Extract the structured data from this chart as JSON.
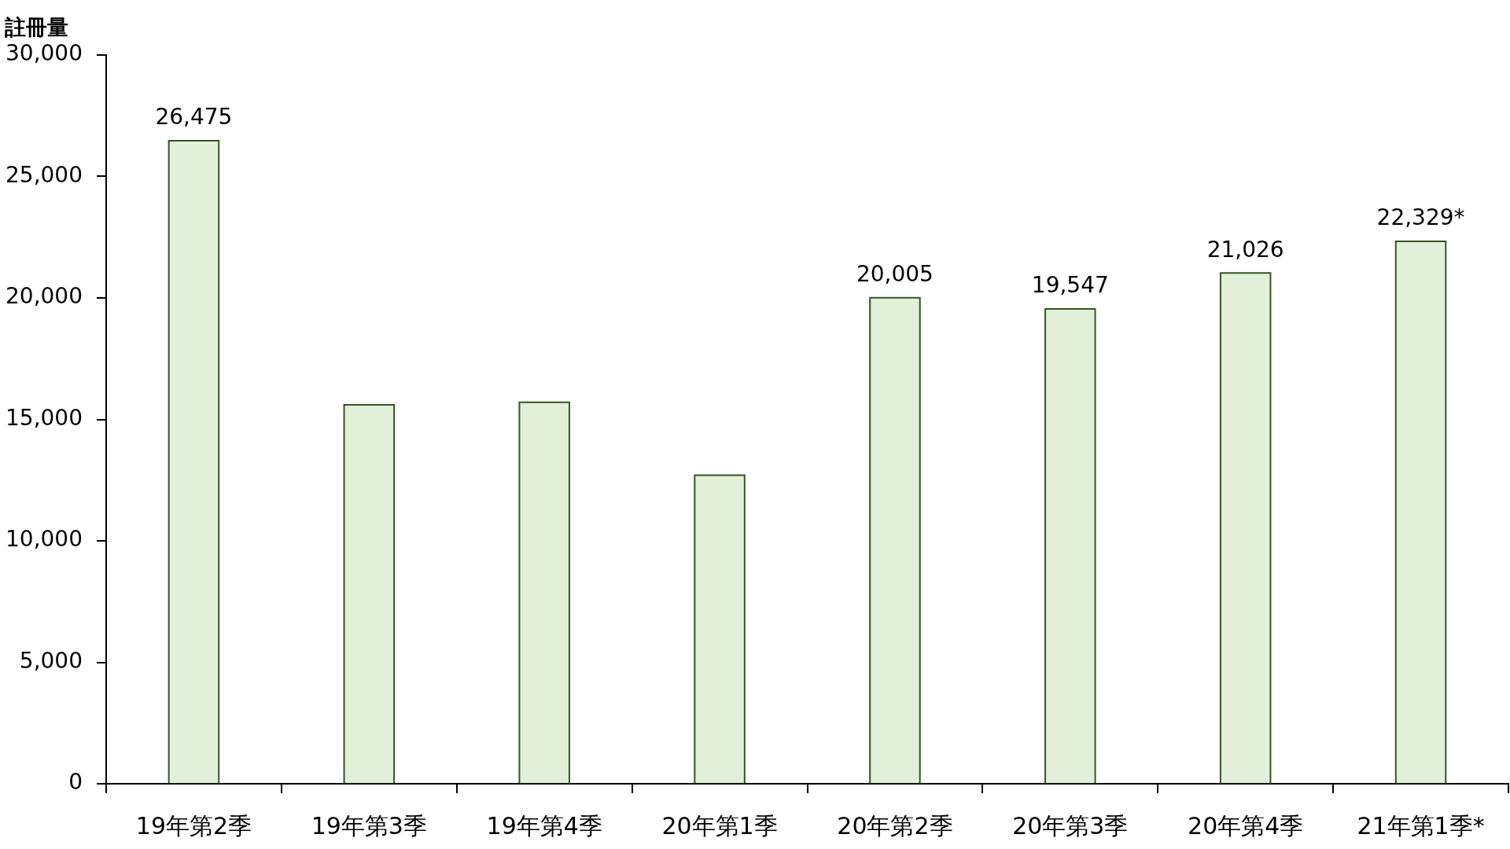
{
  "chart_data": {
    "type": "bar",
    "ylabel": "註冊量",
    "categories": [
      "19年第2季",
      "19年第3季",
      "19年第4季",
      "20年第1季",
      "20年第2季",
      "20年第3季",
      "20年第4季",
      "21年第1季*"
    ],
    "values": [
      26475,
      15600,
      15700,
      12700,
      20005,
      19547,
      21026,
      22329
    ],
    "value_labels": [
      "26,475",
      null,
      null,
      null,
      "20,005",
      "19,547",
      "21,026",
      "22,329*"
    ],
    "color": "#e2efd9",
    "ylim": [
      0,
      30000
    ],
    "yticks": [
      0,
      {
        "value": 5000,
        "label": "5,000"
      },
      {
        "value": 10000,
        "label": "10,000"
      },
      {
        "value": 15000,
        "label": "15,000"
      },
      {
        "value": 20000,
        "label": "20,000"
      },
      {
        "value": 25000,
        "label": "25,000"
      },
      {
        "value": 30000,
        "label": "30,000"
      }
    ],
    "legend": false,
    "grid": false
  }
}
